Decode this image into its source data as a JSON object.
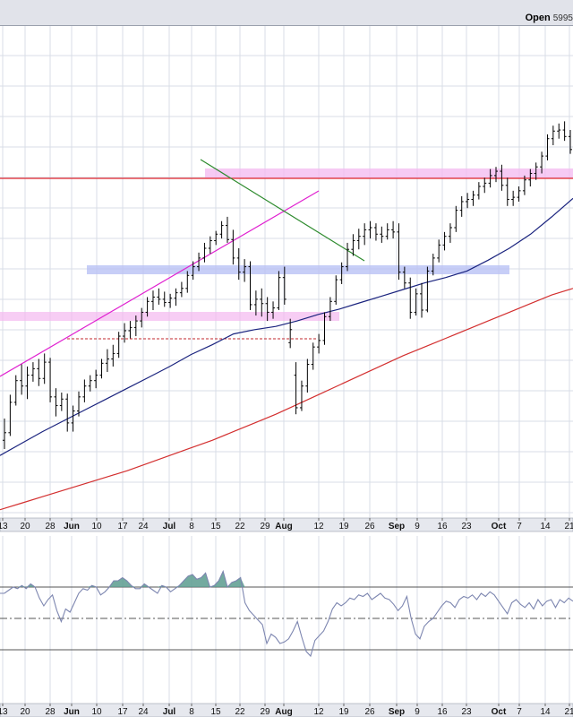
{
  "header": {
    "open_label": "Open",
    "open_value": "5995"
  },
  "colors": {
    "price_bar": "#000000",
    "ma_short": "#1a237e",
    "ma_long": "#d32f2f",
    "resistance_line": "#e0242c",
    "pink_zone": "#f3b8f0",
    "blue_zone": "#b9c2f5",
    "uptrend_line": "#e020d0",
    "downtrend_line": "#2e8b2e",
    "support_dashed": "#c0272d",
    "osc_line": "#7d86b0",
    "osc_fill": "#5b9b8e",
    "grid": "#d9dde7",
    "axis_bg": "#e6e8ee"
  },
  "chart_data": [
    {
      "type": "line",
      "role": "price",
      "title": "",
      "x_tick_labels": [
        "13",
        "20",
        "28",
        "Jun",
        "10",
        "17",
        "24",
        "Jul",
        "8",
        "15",
        "22",
        "29",
        "Aug",
        "12",
        "19",
        "26",
        "Sep",
        "9",
        "16",
        "23",
        "Oct",
        "7",
        "14",
        "21"
      ],
      "x_bold_ticks": [
        "Jun",
        "Jul",
        "Aug",
        "Sep",
        "Oct"
      ],
      "grid": true,
      "series": [
        {
          "style": "ohlc_bars",
          "values": [
            [
              0.7,
              0.9,
              0.62,
              0.77
            ],
            [
              0.77,
              1.12,
              0.74,
              1.05
            ],
            [
              1.05,
              1.3,
              1.02,
              1.25
            ],
            [
              1.25,
              1.4,
              1.12,
              1.2
            ],
            [
              1.2,
              1.38,
              1.08,
              1.3
            ],
            [
              1.3,
              1.42,
              1.24,
              1.36
            ],
            [
              1.36,
              1.45,
              1.2,
              1.27
            ],
            [
              1.27,
              1.5,
              1.22,
              1.42
            ],
            [
              1.42,
              1.46,
              1.05,
              1.1
            ],
            [
              1.1,
              1.18,
              0.92,
              1.02
            ],
            [
              1.02,
              1.14,
              0.97,
              1.08
            ],
            [
              1.08,
              1.13,
              0.78,
              0.86
            ],
            [
              0.86,
              1.02,
              0.78,
              0.97
            ],
            [
              0.97,
              1.15,
              0.92,
              1.1
            ],
            [
              1.1,
              1.26,
              1.05,
              1.2
            ],
            [
              1.2,
              1.3,
              1.15,
              1.25
            ],
            [
              1.25,
              1.35,
              1.18,
              1.3
            ],
            [
              1.3,
              1.45,
              1.27,
              1.41
            ],
            [
              1.41,
              1.54,
              1.33,
              1.45
            ],
            [
              1.45,
              1.58,
              1.38,
              1.5
            ],
            [
              1.5,
              1.7,
              1.46,
              1.66
            ],
            [
              1.66,
              1.78,
              1.6,
              1.71
            ],
            [
              1.71,
              1.8,
              1.64,
              1.74
            ],
            [
              1.74,
              1.85,
              1.66,
              1.8
            ],
            [
              1.8,
              1.92,
              1.74,
              1.88
            ],
            [
              1.88,
              2.02,
              1.84,
              1.98
            ],
            [
              1.98,
              2.08,
              1.9,
              2.02
            ],
            [
              2.02,
              2.1,
              1.95,
              2.0
            ],
            [
              2.0,
              2.07,
              1.93,
              1.97
            ],
            [
              1.97,
              2.05,
              1.92,
              2.01
            ],
            [
              2.01,
              2.1,
              1.94,
              2.06
            ],
            [
              2.06,
              2.16,
              2.02,
              2.1
            ],
            [
              2.1,
              2.26,
              2.06,
              2.22
            ],
            [
              2.22,
              2.35,
              2.18,
              2.3
            ],
            [
              2.3,
              2.43,
              2.26,
              2.38
            ],
            [
              2.38,
              2.52,
              2.34,
              2.47
            ],
            [
              2.47,
              2.58,
              2.42,
              2.54
            ],
            [
              2.54,
              2.63,
              2.5,
              2.6
            ],
            [
              2.6,
              2.72,
              2.56,
              2.68
            ],
            [
              2.68,
              2.76,
              2.52,
              2.55
            ],
            [
              2.55,
              2.64,
              2.32,
              2.38
            ],
            [
              2.38,
              2.47,
              2.18,
              2.25
            ],
            [
              2.25,
              2.37,
              2.16,
              2.3
            ],
            [
              2.3,
              2.35,
              1.9,
              1.95
            ],
            [
              1.95,
              2.08,
              1.85,
              2.0
            ],
            [
              2.0,
              2.1,
              1.84,
              1.96
            ],
            [
              1.96,
              2.02,
              1.8,
              1.88
            ],
            [
              1.88,
              1.98,
              1.82,
              1.92
            ],
            [
              1.92,
              2.26,
              1.9,
              2.2
            ],
            [
              2.2,
              2.3,
              1.95,
              2.0
            ],
            [
              1.6,
              1.82,
              1.55,
              1.72
            ],
            [
              1.3,
              1.42,
              0.94,
              1.0
            ],
            [
              1.0,
              1.25,
              0.97,
              1.2
            ],
            [
              1.2,
              1.45,
              1.14,
              1.4
            ],
            [
              1.4,
              1.6,
              1.35,
              1.56
            ],
            [
              1.56,
              1.68,
              1.5,
              1.62
            ],
            [
              1.62,
              1.88,
              1.58,
              1.84
            ],
            [
              1.84,
              2.02,
              1.8,
              1.98
            ],
            [
              1.98,
              2.22,
              1.95,
              2.18
            ],
            [
              2.18,
              2.34,
              2.14,
              2.3
            ],
            [
              2.3,
              2.52,
              2.26,
              2.46
            ],
            [
              2.46,
              2.6,
              2.4,
              2.54
            ],
            [
              2.54,
              2.65,
              2.46,
              2.58
            ],
            [
              2.58,
              2.7,
              2.5,
              2.64
            ],
            [
              2.64,
              2.72,
              2.56,
              2.66
            ],
            [
              2.66,
              2.7,
              2.54,
              2.6
            ],
            [
              2.6,
              2.67,
              2.52,
              2.58
            ],
            [
              2.58,
              2.7,
              2.55,
              2.64
            ],
            [
              2.64,
              2.72,
              2.56,
              2.62
            ],
            [
              2.62,
              2.7,
              2.18,
              2.25
            ],
            [
              2.25,
              2.3,
              2.1,
              2.15
            ],
            [
              2.15,
              2.2,
              1.82,
              1.88
            ],
            [
              1.88,
              2.1,
              1.85,
              2.05
            ],
            [
              2.05,
              2.15,
              1.83,
              1.9
            ],
            [
              1.9,
              2.3,
              1.88,
              2.26
            ],
            [
              2.26,
              2.42,
              2.22,
              2.38
            ],
            [
              2.38,
              2.55,
              2.34,
              2.5
            ],
            [
              2.5,
              2.62,
              2.45,
              2.58
            ],
            [
              2.58,
              2.7,
              2.52,
              2.66
            ],
            [
              2.66,
              2.86,
              2.62,
              2.82
            ],
            [
              2.82,
              2.95,
              2.76,
              2.9
            ],
            [
              2.9,
              2.98,
              2.84,
              2.92
            ],
            [
              2.92,
              3.0,
              2.86,
              2.96
            ],
            [
              2.96,
              3.08,
              2.92,
              3.04
            ],
            [
              3.04,
              3.12,
              2.98,
              3.07
            ],
            [
              3.07,
              3.2,
              3.03,
              3.14
            ],
            [
              3.14,
              3.22,
              3.08,
              3.18
            ],
            [
              3.18,
              3.24,
              3.0,
              3.05
            ],
            [
              3.05,
              3.12,
              2.86,
              2.92
            ],
            [
              2.92,
              3.0,
              2.86,
              2.94
            ],
            [
              2.94,
              3.04,
              2.9,
              3.0
            ],
            [
              3.0,
              3.14,
              2.96,
              3.1
            ],
            [
              3.1,
              3.2,
              3.04,
              3.16
            ],
            [
              3.16,
              3.26,
              3.1,
              3.22
            ],
            [
              3.22,
              3.36,
              3.16,
              3.32
            ],
            [
              3.32,
              3.52,
              3.28,
              3.48
            ],
            [
              3.48,
              3.6,
              3.42,
              3.55
            ],
            [
              3.55,
              3.62,
              3.48,
              3.56
            ],
            [
              3.56,
              3.64,
              3.46,
              3.5
            ],
            [
              3.5,
              3.56,
              3.34,
              3.38
            ]
          ]
        },
        {
          "name": "",
          "style": "line",
          "role": "ma_short",
          "values": [
            0.56,
            0.67,
            0.78,
            0.88,
            0.98,
            1.08,
            1.18,
            1.28,
            1.38,
            1.49,
            1.58,
            1.68,
            1.72,
            1.75,
            1.8,
            1.86,
            1.91,
            1.97,
            2.03,
            2.09,
            2.15,
            2.2,
            2.26,
            2.36,
            2.47,
            2.6,
            2.76,
            2.93
          ]
        },
        {
          "name": "",
          "style": "line",
          "role": "ma_long",
          "values": [
            0.06,
            0.12,
            0.18,
            0.24,
            0.3,
            0.36,
            0.42,
            0.49,
            0.56,
            0.63,
            0.7,
            0.78,
            0.86,
            0.94,
            1.03,
            1.12,
            1.21,
            1.3,
            1.39,
            1.48,
            1.56,
            1.64,
            1.72,
            1.8,
            1.88,
            1.96,
            2.04,
            2.1
          ]
        }
      ]
    },
    {
      "type": "area",
      "role": "oscillator",
      "title": "",
      "x_tick_labels": [
        "13",
        "20",
        "28",
        "Jun",
        "10",
        "17",
        "24",
        "Jul",
        "8",
        "15",
        "22",
        "29",
        "Aug",
        "12",
        "19",
        "26",
        "Sep",
        "9",
        "16",
        "23",
        "Oct",
        "7",
        "14",
        "21"
      ],
      "x_bold_ticks": [
        "Jun",
        "Jul",
        "Aug",
        "Sep",
        "Oct"
      ],
      "ylim": [
        0,
        100
      ],
      "reference_levels": [
        70,
        50,
        30
      ],
      "series": [
        {
          "name": "",
          "values": [
            66,
            66,
            68,
            70,
            69,
            71,
            69,
            72,
            70,
            63,
            58,
            62,
            65,
            55,
            48,
            56,
            54,
            60,
            66,
            69,
            68,
            71,
            70,
            65,
            67,
            70,
            74,
            74,
            76,
            74,
            71,
            69,
            69,
            72,
            70,
            68,
            66,
            71,
            70,
            67,
            69,
            71,
            74,
            77,
            78,
            75,
            76,
            79,
            70,
            71,
            74,
            80,
            70,
            73,
            74,
            76,
            60,
            55,
            52,
            49,
            46,
            34,
            40,
            38,
            34,
            35,
            37,
            42,
            48,
            38,
            29,
            26,
            36,
            39,
            42,
            48,
            56,
            60,
            58,
            60,
            63,
            62,
            65,
            64,
            66,
            62,
            64,
            66,
            63,
            62,
            59,
            55,
            58,
            64,
            50,
            40,
            37,
            45,
            48,
            50,
            54,
            58,
            61,
            60,
            57,
            62,
            64,
            63,
            65,
            62,
            66,
            64,
            67,
            65,
            61,
            57,
            53,
            60,
            62,
            59,
            57,
            60,
            56,
            62,
            58,
            61,
            62,
            57,
            62,
            60,
            63,
            61
          ]
        }
      ]
    }
  ]
}
